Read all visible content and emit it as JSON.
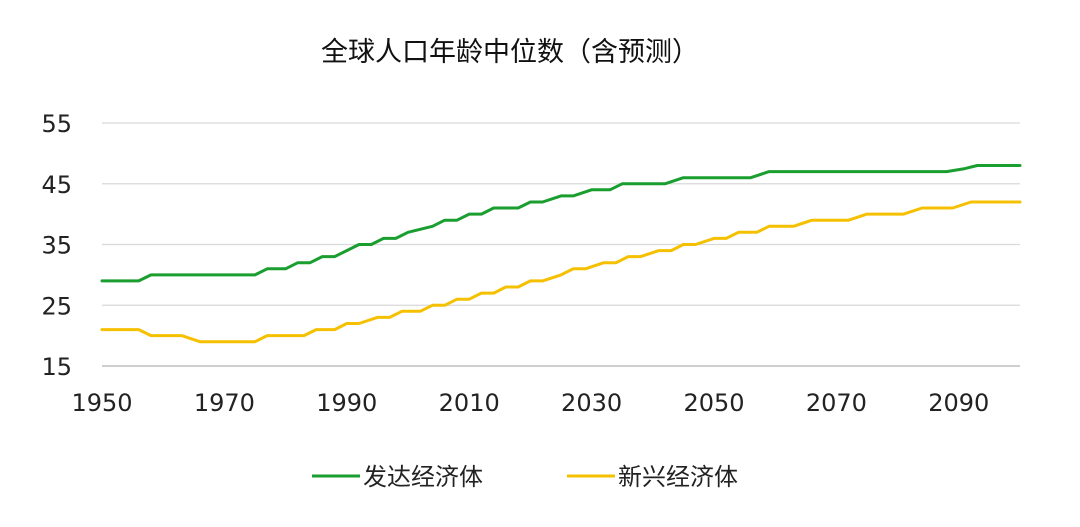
{
  "chart_data": {
    "type": "line",
    "title": "全球人口年龄中位数（含预测）",
    "xlabel": "",
    "ylabel": "",
    "xlim": [
      1950,
      2100
    ],
    "ylim": [
      15,
      55
    ],
    "x_ticks": [
      1950,
      1970,
      1990,
      2010,
      2030,
      2050,
      2070,
      2090
    ],
    "y_ticks": [
      15,
      25,
      35,
      45,
      55
    ],
    "grid": "horizontal",
    "legend": "bottom",
    "series": [
      {
        "name": "发达经济体",
        "color": "#1a9e2f",
        "points": [
          [
            1950,
            29
          ],
          [
            1956,
            29
          ],
          [
            1958,
            30
          ],
          [
            1975,
            30
          ],
          [
            1977,
            31
          ],
          [
            1980,
            31
          ],
          [
            1982,
            32
          ],
          [
            1984,
            32
          ],
          [
            1986,
            33
          ],
          [
            1988,
            33
          ],
          [
            1990,
            34
          ],
          [
            1992,
            35
          ],
          [
            1994,
            35
          ],
          [
            1996,
            36
          ],
          [
            1998,
            36
          ],
          [
            2000,
            37
          ],
          [
            2002,
            37.5
          ],
          [
            2004,
            38
          ],
          [
            2006,
            39
          ],
          [
            2008,
            39
          ],
          [
            2010,
            40
          ],
          [
            2012,
            40
          ],
          [
            2014,
            41
          ],
          [
            2018,
            41
          ],
          [
            2020,
            42
          ],
          [
            2022,
            42
          ],
          [
            2025,
            43
          ],
          [
            2027,
            43
          ],
          [
            2030,
            44
          ],
          [
            2033,
            44
          ],
          [
            2035,
            45
          ],
          [
            2042,
            45
          ],
          [
            2045,
            46
          ],
          [
            2056,
            46
          ],
          [
            2059,
            47
          ],
          [
            2088,
            47
          ],
          [
            2091,
            47.5
          ],
          [
            2093,
            48
          ],
          [
            2100,
            48
          ]
        ]
      },
      {
        "name": "新兴经济体",
        "color": "#f5c000",
        "points": [
          [
            1950,
            21
          ],
          [
            1956,
            21
          ],
          [
            1958,
            20
          ],
          [
            1963,
            20
          ],
          [
            1966,
            19
          ],
          [
            1975,
            19
          ],
          [
            1977,
            20
          ],
          [
            1983,
            20
          ],
          [
            1985,
            21
          ],
          [
            1988,
            21
          ],
          [
            1990,
            22
          ],
          [
            1992,
            22
          ],
          [
            1995,
            23
          ],
          [
            1997,
            23
          ],
          [
            1999,
            24
          ],
          [
            2002,
            24
          ],
          [
            2004,
            25
          ],
          [
            2006,
            25
          ],
          [
            2008,
            26
          ],
          [
            2010,
            26
          ],
          [
            2012,
            27
          ],
          [
            2014,
            27
          ],
          [
            2016,
            28
          ],
          [
            2018,
            28
          ],
          [
            2020,
            29
          ],
          [
            2022,
            29
          ],
          [
            2025,
            30
          ],
          [
            2027,
            31
          ],
          [
            2029,
            31
          ],
          [
            2032,
            32
          ],
          [
            2034,
            32
          ],
          [
            2036,
            33
          ],
          [
            2038,
            33
          ],
          [
            2041,
            34
          ],
          [
            2043,
            34
          ],
          [
            2045,
            35
          ],
          [
            2047,
            35
          ],
          [
            2050,
            36
          ],
          [
            2052,
            36
          ],
          [
            2054,
            37
          ],
          [
            2057,
            37
          ],
          [
            2059,
            38
          ],
          [
            2063,
            38
          ],
          [
            2066,
            39
          ],
          [
            2072,
            39
          ],
          [
            2075,
            40
          ],
          [
            2081,
            40
          ],
          [
            2084,
            41
          ],
          [
            2089,
            41
          ],
          [
            2092,
            42
          ],
          [
            2100,
            42
          ]
        ]
      }
    ]
  }
}
